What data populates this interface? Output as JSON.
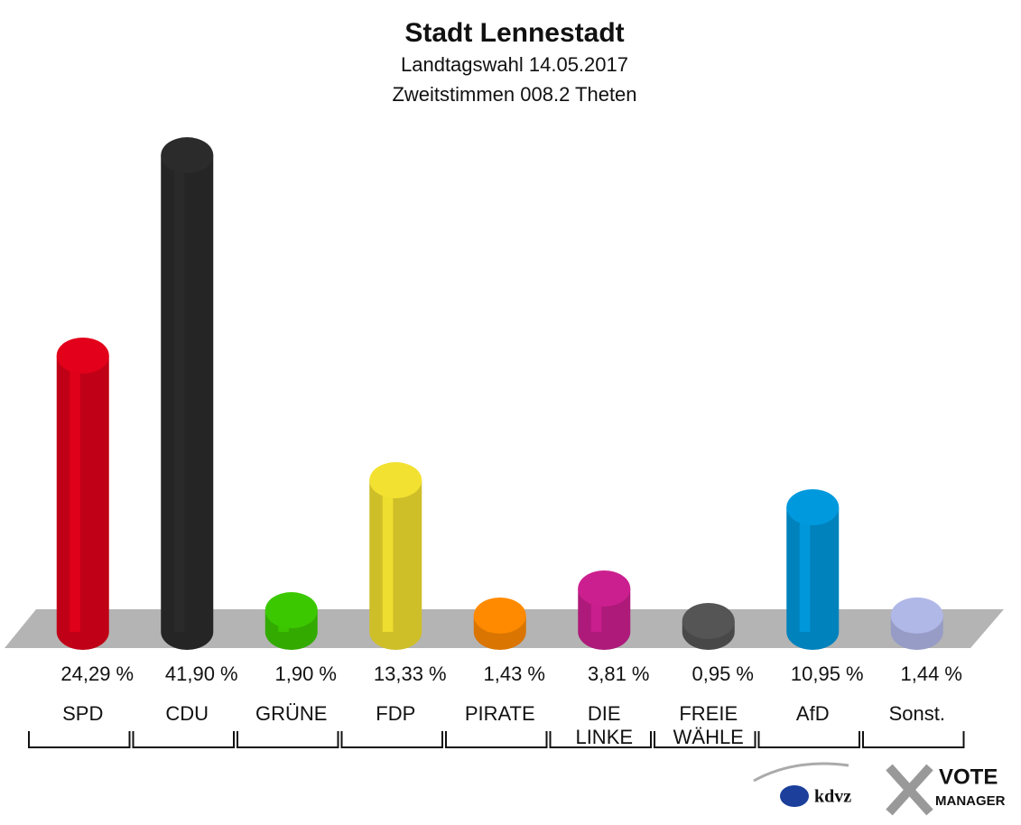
{
  "chart_data": {
    "type": "bar",
    "title": "Stadt Lennestadt",
    "subtitle": [
      "Landtagswahl 14.05.2017",
      "Zweitstimmen 008.2 Theten"
    ],
    "categories": [
      "SPD",
      "CDU",
      "GRÜNE",
      "FDP",
      "PIRATE",
      "DIE LINKE",
      "FREIE WÄHLE",
      "AfD",
      "Sonst."
    ],
    "values": [
      24.29,
      41.9,
      1.9,
      13.33,
      1.43,
      3.81,
      0.95,
      10.95,
      1.44
    ],
    "value_labels": [
      "24,29 %",
      "41,90 %",
      "1,90 %",
      "13,33 %",
      "1,43 %",
      "3,81 %",
      "0,95 %",
      "10,95 %",
      "1,44 %"
    ],
    "colors": [
      "#e2001a",
      "#2b2b2b",
      "#3cc800",
      "#f2e130",
      "#ff8a00",
      "#cc1f8f",
      "#555555",
      "#0099dd",
      "#b0b8e8"
    ],
    "logo": {
      "left": "kdvz",
      "right": [
        "VOTE",
        "MANAGER"
      ]
    }
  }
}
